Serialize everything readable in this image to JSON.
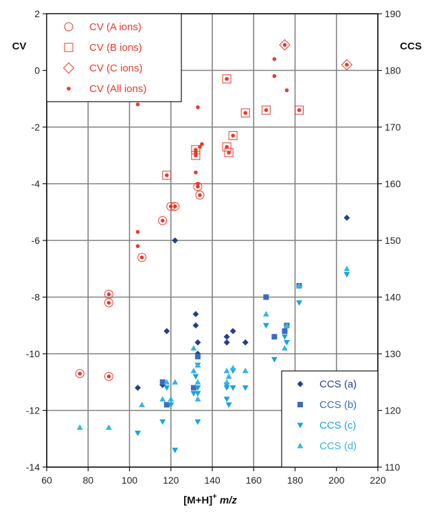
{
  "chart_data": {
    "type": "scatter",
    "xlabel": "[M+H]+ m/z",
    "xlabel_main": "[M+H]",
    "xlabel_sup": "+",
    "xlabel_italic": "m/z",
    "ylabel_left": "CV",
    "ylabel_right": "CCS",
    "xlim": [
      60,
      220
    ],
    "ylim_left": [
      -14,
      2
    ],
    "ylim_right": [
      110,
      190
    ],
    "x_ticks": [
      60,
      80,
      100,
      120,
      140,
      160,
      180,
      200,
      220
    ],
    "y_left_ticks": [
      -14,
      -12,
      -10,
      -8,
      -6,
      -4,
      -2,
      0,
      2
    ],
    "y_right_ticks": [
      110,
      120,
      130,
      140,
      150,
      160,
      170,
      180,
      190
    ],
    "grid": true,
    "colors": {
      "cv": "#e8392b",
      "ccs_a": "#243f8f",
      "ccs_b": "#3a6bc4",
      "ccs_c": "#1aa3dc",
      "ccs_d": "#35b6e6",
      "grid": "#808080"
    },
    "legend_left": {
      "position": "top-left",
      "entries": [
        {
          "label": "CV (A ions)",
          "marker": "circle"
        },
        {
          "label": "CV (B ions)",
          "marker": "square"
        },
        {
          "label": "CV (C ions)",
          "marker": "diamond"
        },
        {
          "label": "CV (All ions)",
          "marker": "dot"
        }
      ]
    },
    "legend_right": {
      "position": "bottom-right",
      "entries": [
        {
          "label": "CCS (a)",
          "marker": "diamond-filled"
        },
        {
          "label": "CCS (b)",
          "marker": "square-filled"
        },
        {
          "label": "CCS (c)",
          "marker": "triangle-down"
        },
        {
          "label": "CCS (d)",
          "marker": "triangle-up"
        }
      ]
    },
    "series": [
      {
        "name": "CV (A ions)",
        "axis": "left",
        "marker": "circle",
        "points": [
          [
            76,
            -10.7
          ],
          [
            90,
            -7.9
          ],
          [
            90,
            -8.2
          ],
          [
            90,
            -10.8
          ],
          [
            106,
            -6.6
          ],
          [
            116,
            -5.3
          ],
          [
            120,
            -4.8
          ],
          [
            122,
            -4.8
          ],
          [
            133,
            -4.1
          ],
          [
            134,
            -4.4
          ]
        ]
      },
      {
        "name": "CV (B ions)",
        "axis": "left",
        "marker": "square",
        "points": [
          [
            118,
            -3.7
          ],
          [
            132,
            -2.8
          ],
          [
            132,
            -3.0
          ],
          [
            147,
            -0.3
          ],
          [
            147,
            -2.7
          ],
          [
            148,
            -2.9
          ],
          [
            150,
            -2.3
          ],
          [
            156,
            -1.5
          ],
          [
            166,
            -1.4
          ],
          [
            182,
            -1.4
          ]
        ]
      },
      {
        "name": "CV (C ions)",
        "axis": "left",
        "marker": "diamond",
        "points": [
          [
            175,
            0.9
          ],
          [
            205,
            0.2
          ]
        ]
      },
      {
        "name": "CV (All ions)",
        "axis": "left",
        "marker": "dot",
        "points": [
          [
            76,
            -10.7
          ],
          [
            90,
            -7.9
          ],
          [
            90,
            -8.2
          ],
          [
            90,
            -10.8
          ],
          [
            104,
            -1.2
          ],
          [
            104,
            -5.7
          ],
          [
            104,
            -6.2
          ],
          [
            106,
            -6.6
          ],
          [
            116,
            -5.3
          ],
          [
            118,
            -3.7
          ],
          [
            120,
            -4.8
          ],
          [
            122,
            -4.8
          ],
          [
            132,
            -2.8
          ],
          [
            132,
            -2.9
          ],
          [
            132,
            -3.0
          ],
          [
            132,
            -3.6
          ],
          [
            133,
            -1.3
          ],
          [
            133,
            -4.0
          ],
          [
            133,
            -4.1
          ],
          [
            134,
            -2.7
          ],
          [
            134,
            -4.4
          ],
          [
            135,
            -2.6
          ],
          [
            147,
            -0.3
          ],
          [
            147,
            -2.7
          ],
          [
            148,
            -2.9
          ],
          [
            150,
            -2.3
          ],
          [
            156,
            -1.5
          ],
          [
            166,
            -1.4
          ],
          [
            170,
            0.4
          ],
          [
            170,
            -0.2
          ],
          [
            175,
            0.9
          ],
          [
            176,
            -0.7
          ],
          [
            182,
            -1.4
          ],
          [
            205,
            0.2
          ]
        ]
      },
      {
        "name": "CCS (a)",
        "axis": "right",
        "marker": "diamond-filled",
        "points": [
          [
            104,
            124
          ],
          [
            116,
            124.5
          ],
          [
            118,
            134
          ],
          [
            122,
            150
          ],
          [
            132,
            137
          ],
          [
            132,
            135
          ],
          [
            133,
            132
          ],
          [
            133,
            130
          ],
          [
            147,
            133
          ],
          [
            147,
            132
          ],
          [
            150,
            134
          ],
          [
            156,
            132
          ],
          [
            205,
            154
          ]
        ]
      },
      {
        "name": "CCS (b)",
        "axis": "right",
        "marker": "square-filled",
        "points": [
          [
            116,
            125
          ],
          [
            118,
            121
          ],
          [
            131,
            124
          ],
          [
            133,
            129.5
          ],
          [
            166,
            140
          ],
          [
            170,
            133
          ],
          [
            175,
            134
          ],
          [
            176,
            135
          ],
          [
            182,
            142
          ]
        ]
      },
      {
        "name": "CCS (c)",
        "axis": "right",
        "marker": "triangle-down",
        "points": [
          [
            104,
            116
          ],
          [
            116,
            118
          ],
          [
            118,
            124
          ],
          [
            120,
            121
          ],
          [
            122,
            113
          ],
          [
            131,
            123
          ],
          [
            132,
            126
          ],
          [
            133,
            123
          ],
          [
            133,
            124
          ],
          [
            133,
            118
          ],
          [
            133,
            128
          ],
          [
            147,
            124
          ],
          [
            147,
            124.5
          ],
          [
            147,
            122
          ],
          [
            148,
            121
          ],
          [
            150,
            127
          ],
          [
            150,
            124
          ],
          [
            156,
            124
          ],
          [
            166,
            135
          ],
          [
            170,
            129
          ],
          [
            175,
            133
          ],
          [
            176,
            132
          ],
          [
            182,
            139
          ],
          [
            205,
            144
          ]
        ]
      },
      {
        "name": "CCS (d)",
        "axis": "right",
        "marker": "triangle-up",
        "points": [
          [
            76,
            117
          ],
          [
            90,
            117
          ],
          [
            106,
            121
          ],
          [
            116,
            122
          ],
          [
            118,
            125
          ],
          [
            120,
            122
          ],
          [
            122,
            125
          ],
          [
            131,
            127
          ],
          [
            131,
            131
          ],
          [
            133,
            125
          ],
          [
            133,
            122
          ],
          [
            133,
            128
          ],
          [
            147,
            127
          ],
          [
            147,
            125
          ],
          [
            148,
            126
          ],
          [
            150,
            127.5
          ],
          [
            156,
            127
          ],
          [
            166,
            137
          ],
          [
            175,
            131
          ],
          [
            176,
            135
          ],
          [
            182,
            142
          ],
          [
            205,
            145
          ]
        ]
      }
    ]
  }
}
